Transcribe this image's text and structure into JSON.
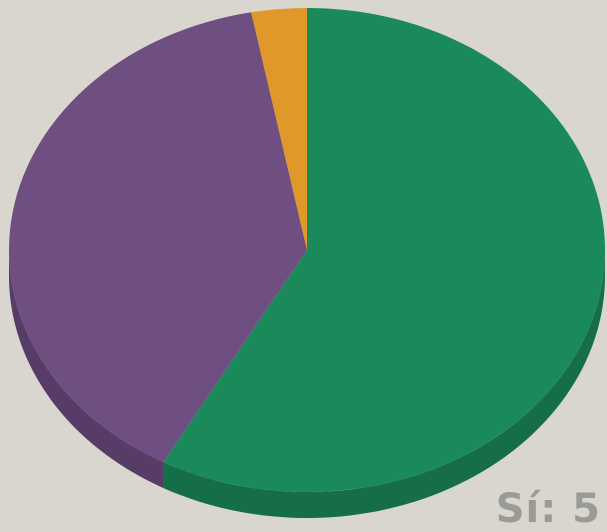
{
  "chart_data": {
    "type": "pie",
    "style": "3d",
    "slices": [
      {
        "value": 58,
        "color": "#1a8a5a",
        "side_color": "#156e48"
      },
      {
        "value": 39,
        "color": "#6f4f82",
        "side_color": "#573c67"
      },
      {
        "value": 3,
        "color": "#e0982a",
        "side_color": "#b07520"
      }
    ],
    "labels": [
      {
        "text": "Sí: 5"
      }
    ]
  }
}
